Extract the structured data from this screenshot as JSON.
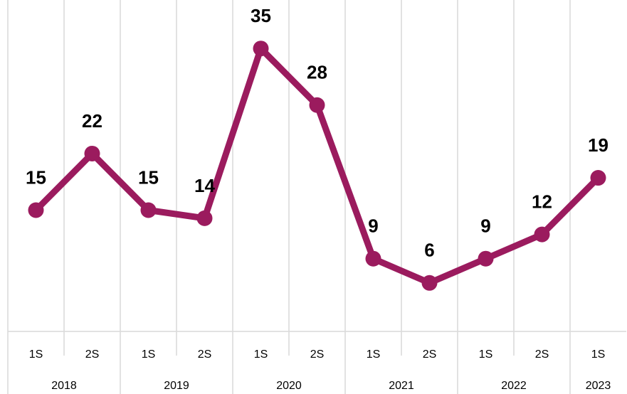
{
  "chart_data": {
    "type": "line",
    "categories": [
      "1S",
      "2S",
      "1S",
      "2S",
      "1S",
      "2S",
      "1S",
      "2S",
      "1S",
      "2S",
      "1S"
    ],
    "groups": [
      {
        "label": "2018",
        "span": 2
      },
      {
        "label": "2019",
        "span": 2
      },
      {
        "label": "2020",
        "span": 2
      },
      {
        "label": "2021",
        "span": 2
      },
      {
        "label": "2022",
        "span": 2
      },
      {
        "label": "2023",
        "span": 1
      }
    ],
    "values": [
      15,
      22,
      15,
      14,
      35,
      28,
      9,
      6,
      9,
      12,
      19
    ],
    "color": "#9b1b5e",
    "ylim": [
      0,
      41
    ]
  }
}
